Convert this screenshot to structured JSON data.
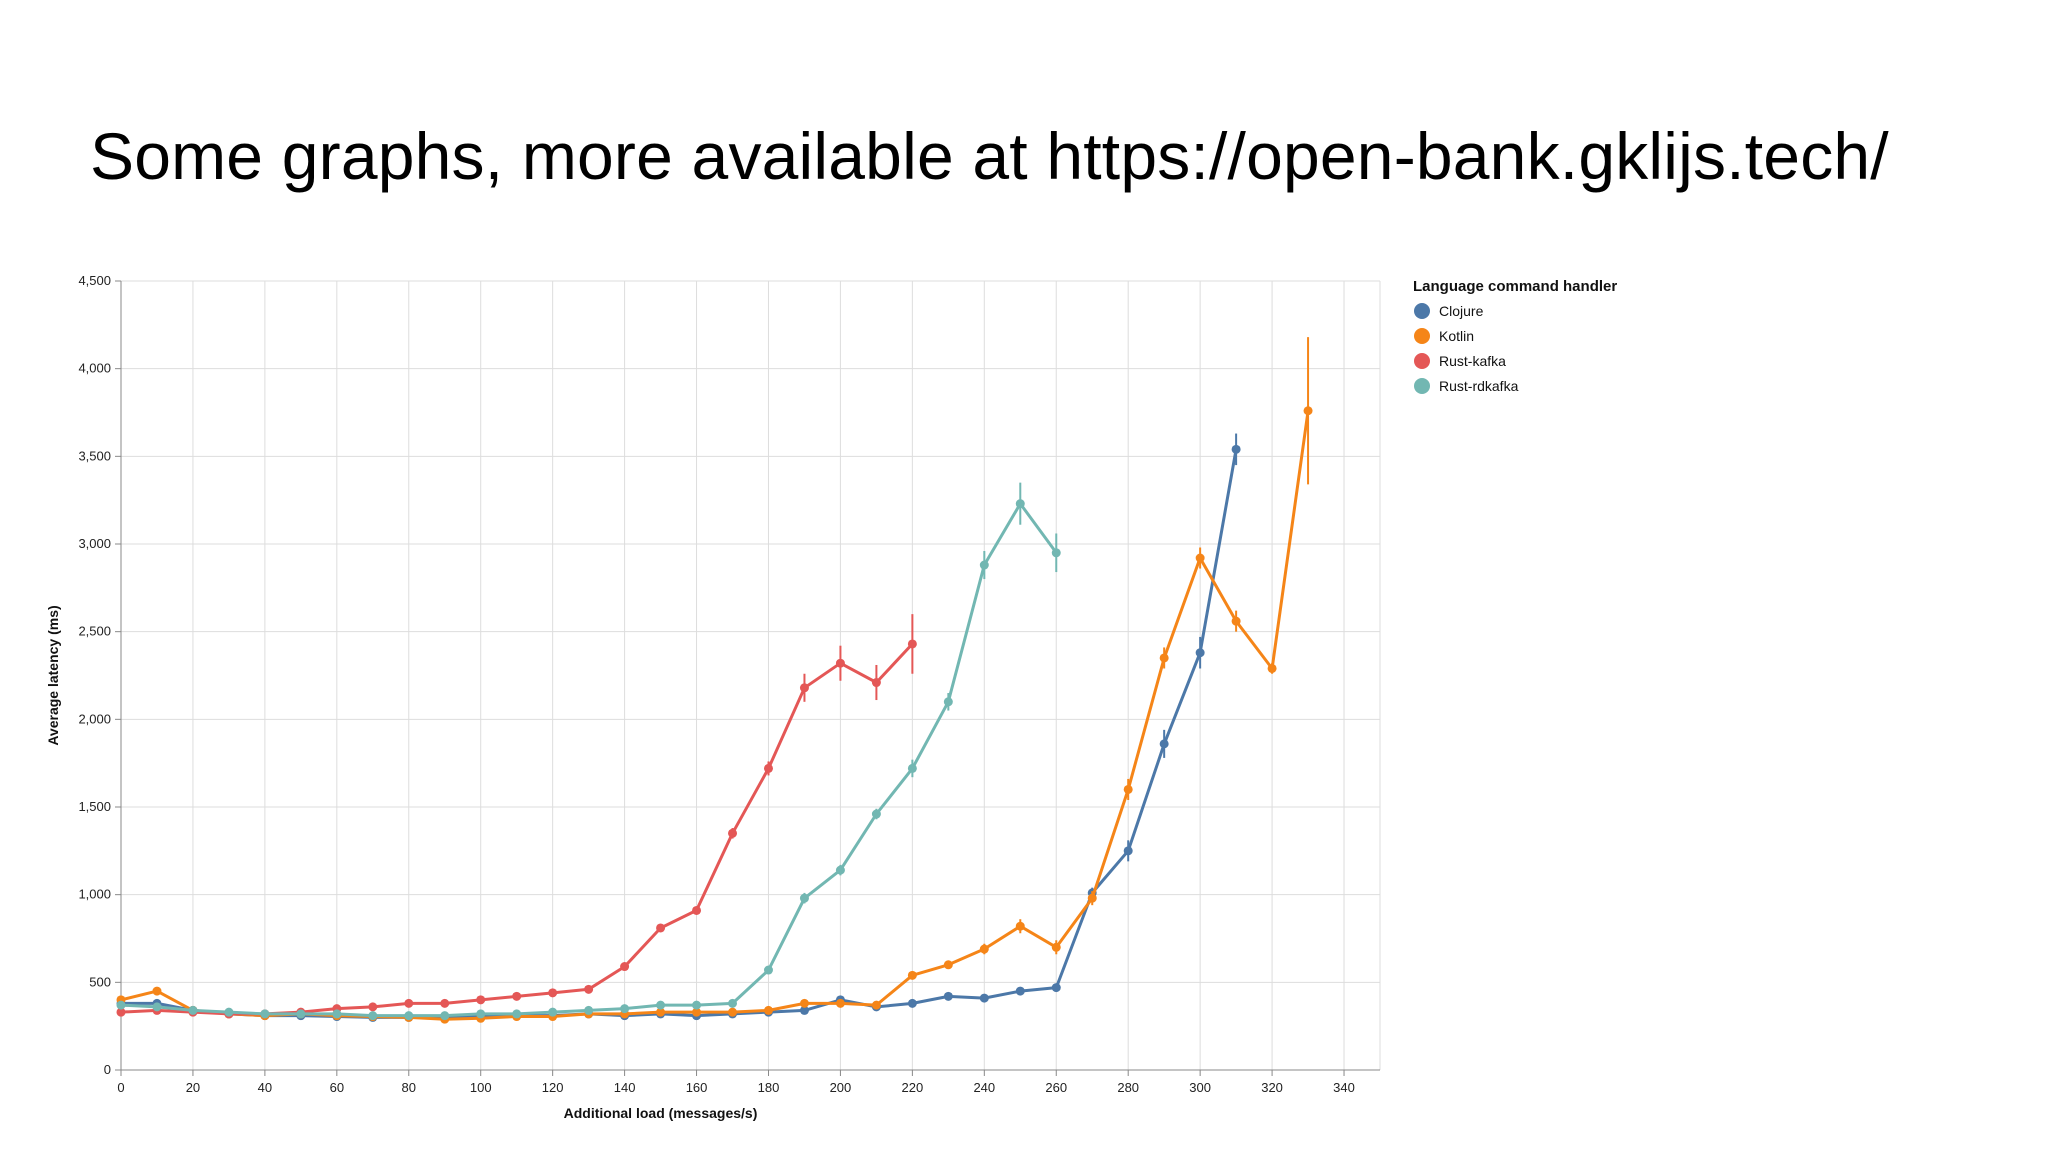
{
  "slide": {
    "title": "Some graphs, more available at https://open-bank.gklijs.tech/"
  },
  "chart_data": {
    "type": "line",
    "title": "",
    "xlabel": "Additional load (messages/s)",
    "ylabel": "Average latency (ms)",
    "xlim": [
      0,
      350
    ],
    "ylim": [
      0,
      4500
    ],
    "x_ticks": [
      0,
      20,
      40,
      60,
      80,
      100,
      120,
      140,
      160,
      180,
      200,
      220,
      240,
      260,
      280,
      300,
      320,
      340
    ],
    "y_ticks": [
      0,
      500,
      1000,
      1500,
      2000,
      2500,
      3000,
      3500,
      4000,
      4500
    ],
    "x_tick_labels": [
      "0",
      "20",
      "40",
      "60",
      "80",
      "100",
      "120",
      "140",
      "160",
      "180",
      "200",
      "220",
      "240",
      "260",
      "280",
      "300",
      "320",
      "340"
    ],
    "y_tick_labels": [
      "0",
      "500",
      "1,000",
      "1,500",
      "2,000",
      "2,500",
      "3,000",
      "3,500",
      "4,000",
      "4,500"
    ],
    "grid": true,
    "legend": {
      "title": "Language command handler",
      "placement": "top-right"
    },
    "series": [
      {
        "name": "Clojure",
        "color": "#4c78a8",
        "x": [
          0,
          10,
          20,
          30,
          40,
          50,
          60,
          70,
          80,
          90,
          100,
          110,
          120,
          130,
          140,
          150,
          160,
          170,
          180,
          190,
          200,
          210,
          220,
          230,
          240,
          250,
          260,
          270,
          280,
          290,
          300,
          310
        ],
        "values": [
          380,
          380,
          340,
          320,
          310,
          310,
          305,
          300,
          300,
          300,
          305,
          310,
          310,
          320,
          310,
          320,
          310,
          320,
          330,
          340,
          400,
          360,
          380,
          420,
          410,
          450,
          470,
          1010,
          1250,
          1860,
          2380,
          3540
        ],
        "err": [
          0,
          0,
          0,
          0,
          0,
          0,
          0,
          0,
          0,
          0,
          0,
          0,
          0,
          0,
          0,
          0,
          0,
          0,
          0,
          0,
          0,
          0,
          0,
          0,
          0,
          0,
          0,
          30,
          60,
          80,
          90,
          90
        ]
      },
      {
        "name": "Kotlin",
        "color": "#f58518",
        "x": [
          0,
          10,
          20,
          30,
          40,
          50,
          60,
          70,
          80,
          90,
          100,
          110,
          120,
          130,
          140,
          150,
          160,
          170,
          180,
          190,
          200,
          210,
          220,
          230,
          240,
          250,
          260,
          270,
          280,
          290,
          300,
          310,
          320,
          330
        ],
        "values": [
          400,
          450,
          340,
          320,
          310,
          320,
          310,
          305,
          300,
          290,
          295,
          305,
          305,
          320,
          320,
          330,
          330,
          330,
          340,
          380,
          380,
          370,
          540,
          600,
          690,
          820,
          700,
          980,
          1600,
          2350,
          2920,
          2560,
          2290,
          3760
        ],
        "err": [
          0,
          0,
          0,
          0,
          0,
          0,
          0,
          0,
          0,
          0,
          0,
          0,
          0,
          0,
          0,
          0,
          0,
          0,
          0,
          0,
          0,
          0,
          0,
          0,
          30,
          40,
          40,
          40,
          60,
          60,
          60,
          60,
          30,
          420
        ]
      },
      {
        "name": "Rust-kafka",
        "color": "#e45756",
        "x": [
          0,
          10,
          20,
          30,
          40,
          50,
          60,
          70,
          80,
          90,
          100,
          110,
          120,
          130,
          140,
          150,
          160,
          170,
          180,
          190,
          200,
          210,
          220
        ],
        "values": [
          330,
          340,
          330,
          320,
          320,
          330,
          350,
          360,
          380,
          380,
          400,
          420,
          440,
          460,
          590,
          810,
          910,
          1350,
          1720,
          2180,
          2320,
          2210,
          2430
        ],
        "err": [
          0,
          0,
          0,
          0,
          0,
          0,
          0,
          0,
          0,
          0,
          0,
          0,
          0,
          0,
          0,
          0,
          0,
          30,
          40,
          80,
          100,
          100,
          170
        ]
      },
      {
        "name": "Rust-rdkafka",
        "color": "#72b7b2",
        "x": [
          0,
          10,
          20,
          30,
          40,
          50,
          60,
          70,
          80,
          90,
          100,
          110,
          120,
          130,
          140,
          150,
          160,
          170,
          180,
          190,
          200,
          210,
          220,
          230,
          240,
          250,
          260
        ],
        "values": [
          370,
          360,
          340,
          330,
          320,
          320,
          320,
          310,
          310,
          310,
          320,
          320,
          330,
          340,
          350,
          370,
          370,
          380,
          570,
          980,
          1140,
          1460,
          1720,
          2100,
          2880,
          3230,
          2950
        ],
        "err": [
          0,
          0,
          0,
          0,
          0,
          0,
          0,
          0,
          0,
          0,
          0,
          0,
          0,
          0,
          0,
          0,
          0,
          0,
          0,
          30,
          30,
          30,
          50,
          50,
          80,
          120,
          110
        ]
      }
    ]
  }
}
